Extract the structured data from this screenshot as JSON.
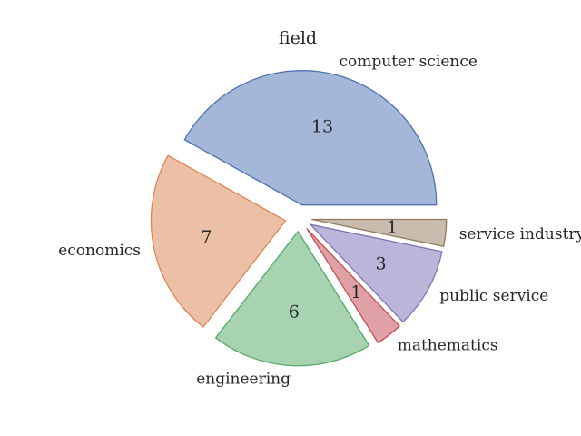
{
  "chart_data": {
    "type": "pie",
    "title": "field",
    "categories": [
      "computer science",
      "economics",
      "engineering",
      "mathematics",
      "public service",
      "service industry"
    ],
    "values": [
      13,
      7,
      6,
      1,
      3,
      1
    ],
    "colors": [
      "#a5b7d9",
      "#ecc0a6",
      "#a8d3b1",
      "#e0a1a6",
      "#bcb5da",
      "#c9bbae"
    ],
    "edge_colors": [
      "#4c72b0",
      "#dd8452",
      "#55a868",
      "#c44e52",
      "#8172b3",
      "#937860"
    ],
    "start_angle_deg": 0,
    "direction": "counterclockwise",
    "exploded": true
  }
}
